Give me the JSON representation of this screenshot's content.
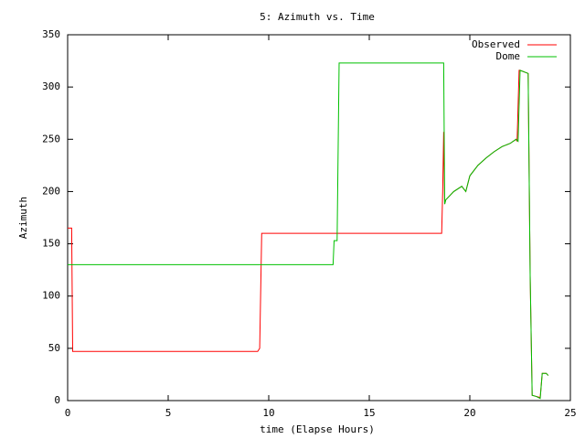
{
  "chart_data": {
    "type": "line",
    "title": "5: Azimuth vs. Time",
    "x_label": "time (Elapse Hours)",
    "y_label": "Azimuth",
    "xlim": [
      0,
      25
    ],
    "xticks": [
      0,
      5,
      10,
      15,
      20,
      25
    ],
    "ylim": [
      0,
      350
    ],
    "yticks": [
      0,
      50,
      100,
      150,
      200,
      250,
      300,
      350
    ],
    "grid": false,
    "legend": "top-right",
    "series": [
      {
        "name": "Observed",
        "color": "#ff0000",
        "x": [
          0,
          0.2,
          0.25,
          9.45,
          9.55,
          9.65,
          18.6,
          18.65,
          18.7,
          18.72,
          18.75,
          18.8,
          19.2,
          19.6,
          19.8,
          20.0,
          20.4,
          20.8,
          21.2,
          21.6,
          22.0,
          22.3,
          22.35,
          22.45,
          22.5,
          22.9,
          23.0,
          23.1,
          23.3,
          23.5,
          23.6,
          23.8,
          23.9
        ],
        "values": [
          165,
          165,
          47,
          47,
          50,
          160,
          160,
          200,
          257,
          225,
          188,
          192,
          200,
          205,
          200,
          215,
          225,
          232,
          238,
          243,
          246,
          250,
          248,
          316,
          316,
          313,
          120,
          5,
          4,
          3,
          26,
          26,
          24
        ]
      },
      {
        "name": "Dome",
        "color": "#00c000",
        "x": [
          0,
          13.2,
          13.25,
          13.4,
          13.5,
          18.7,
          18.75,
          18.8,
          19.2,
          19.6,
          19.8,
          20.0,
          20.4,
          20.8,
          21.2,
          21.6,
          22.0,
          22.3,
          22.4,
          22.5,
          22.9,
          23.0,
          23.1,
          23.3,
          23.5,
          23.6,
          23.8,
          23.9
        ],
        "values": [
          130,
          130,
          153,
          153,
          323,
          323,
          188,
          192,
          200,
          205,
          200,
          215,
          225,
          232,
          238,
          243,
          246,
          250,
          248,
          316,
          313,
          120,
          5,
          4,
          2,
          26,
          26,
          24
        ]
      }
    ]
  }
}
